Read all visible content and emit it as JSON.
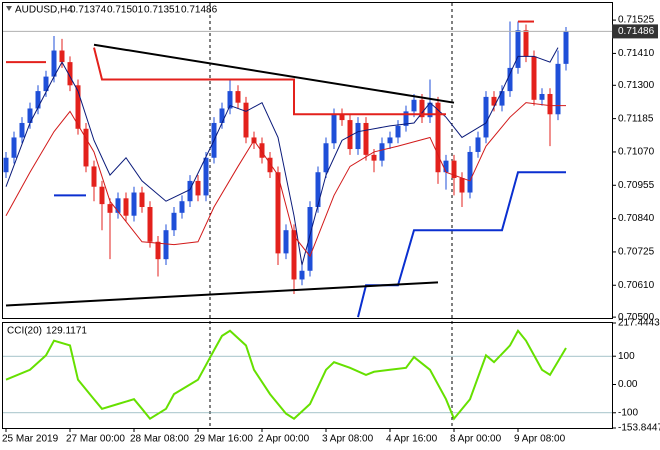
{
  "chart_data": [
    {
      "type": "candlestick",
      "title": "AUDUSD,H4",
      "categories": [
        "25 Mar 2019",
        null,
        null,
        null,
        null,
        null,
        null,
        null,
        "27 Mar 00:00",
        null,
        null,
        null,
        null,
        null,
        null,
        null,
        "28 Mar 08:00",
        null,
        null,
        null,
        null,
        null,
        null,
        null,
        "29 Mar 16:00",
        null,
        null,
        null,
        null,
        null,
        null,
        null,
        "2 Apr 00:00",
        null,
        null,
        null,
        null,
        null,
        null,
        null,
        "3 Apr 08:00",
        null,
        null,
        null,
        null,
        null,
        null,
        null,
        "4 Apr 16:00",
        null,
        null,
        null,
        null,
        null,
        null,
        null,
        "8 Apr 00:00",
        null,
        null,
        null,
        null,
        null,
        null,
        null,
        "9 Apr 08:00",
        null,
        null,
        null,
        null,
        null,
        null
      ],
      "open": [
        0.71,
        0.7105,
        0.7112,
        0.7117,
        0.7122,
        0.7128,
        0.7133,
        0.7142,
        0.7138,
        0.713,
        0.7115,
        0.7102,
        0.7095,
        0.7089,
        0.7086,
        0.7091,
        0.7085,
        0.7093,
        0.7088,
        0.7076,
        0.707,
        0.708,
        0.7086,
        0.709,
        0.7097,
        0.7092,
        0.7105,
        0.7117,
        0.7122,
        0.7128,
        0.7124,
        0.7112,
        0.711,
        0.7105,
        0.71,
        0.7072,
        0.708,
        0.7063,
        0.7066,
        0.7088,
        0.71,
        0.711,
        0.712,
        0.7118,
        0.7108,
        0.7117,
        0.7106,
        0.7104,
        0.711,
        0.7112,
        0.7116,
        0.7121,
        0.7125,
        0.7119,
        0.7124,
        0.71,
        0.7104,
        0.7098,
        0.7093,
        0.7107,
        0.7112,
        0.7126,
        0.7123,
        0.7128,
        0.7136,
        0.7149,
        0.714,
        0.7125,
        0.7127,
        0.712,
        0.71374
      ],
      "high": [
        0.7107,
        0.7114,
        0.7119,
        0.7124,
        0.713,
        0.7135,
        0.7147,
        0.7146,
        0.714,
        0.7132,
        0.7117,
        0.7104,
        0.7097,
        0.7091,
        0.7093,
        0.7093,
        0.7095,
        0.7095,
        0.709,
        0.7078,
        0.7082,
        0.7088,
        0.7092,
        0.7099,
        0.7099,
        0.7107,
        0.7119,
        0.7124,
        0.7132,
        0.713,
        0.7126,
        0.7114,
        0.7112,
        0.7107,
        0.7102,
        0.7082,
        0.7082,
        0.7068,
        0.709,
        0.7102,
        0.7112,
        0.7122,
        0.7122,
        0.712,
        0.7119,
        0.7119,
        0.7108,
        0.7112,
        0.7114,
        0.7118,
        0.7123,
        0.7127,
        0.7127,
        0.7132,
        0.7126,
        0.7106,
        0.7106,
        0.71,
        0.7109,
        0.7114,
        0.7128,
        0.7128,
        0.713,
        0.7152,
        0.7152,
        0.7151,
        0.7142,
        0.7129,
        0.7129,
        0.7142,
        0.71501
      ],
      "low": [
        0.7098,
        0.7103,
        0.711,
        0.7115,
        0.712,
        0.7126,
        0.7131,
        0.7136,
        0.7128,
        0.7113,
        0.71,
        0.709,
        0.708,
        0.707,
        0.7084,
        0.7083,
        0.7083,
        0.7086,
        0.7074,
        0.7064,
        0.7068,
        0.7078,
        0.7084,
        0.7088,
        0.709,
        0.709,
        0.7103,
        0.7115,
        0.712,
        0.7122,
        0.711,
        0.7108,
        0.7103,
        0.7098,
        0.7068,
        0.707,
        0.7058,
        0.7061,
        0.7064,
        0.7086,
        0.7098,
        0.7108,
        0.7116,
        0.7106,
        0.7106,
        0.7104,
        0.71,
        0.7102,
        0.7108,
        0.711,
        0.7114,
        0.7119,
        0.7117,
        0.7117,
        0.7096,
        0.7094,
        0.7092,
        0.7088,
        0.7091,
        0.7105,
        0.711,
        0.7121,
        0.7121,
        0.7126,
        0.7134,
        0.7138,
        0.7123,
        0.7123,
        0.7109,
        0.7118,
        0.71351
      ],
      "close": [
        0.7105,
        0.7112,
        0.7117,
        0.7122,
        0.7128,
        0.7133,
        0.7142,
        0.7138,
        0.713,
        0.7115,
        0.7102,
        0.7095,
        0.7089,
        0.7086,
        0.7091,
        0.7085,
        0.7093,
        0.7088,
        0.7076,
        0.707,
        0.708,
        0.7086,
        0.709,
        0.7097,
        0.7092,
        0.7105,
        0.7117,
        0.7122,
        0.7128,
        0.7124,
        0.7112,
        0.711,
        0.7105,
        0.71,
        0.7072,
        0.708,
        0.7063,
        0.7066,
        0.7088,
        0.71,
        0.711,
        0.712,
        0.7118,
        0.7108,
        0.7117,
        0.7106,
        0.7104,
        0.711,
        0.7112,
        0.7116,
        0.7121,
        0.7125,
        0.7119,
        0.7124,
        0.71,
        0.7104,
        0.7098,
        0.7093,
        0.7107,
        0.7112,
        0.7126,
        0.7123,
        0.7128,
        0.7136,
        0.7149,
        0.714,
        0.7125,
        0.7127,
        0.712,
        0.71374,
        0.71486
      ],
      "up_color": "#1f4fd8",
      "down_color": "#e3211c",
      "ylim": [
        0.70497,
        0.71584
      ],
      "yticks": [
        0.71525,
        {
          "value": 0.7141,
          "label": "0.71410"
        },
        {
          "value": 0.713,
          "label": "0.71300"
        },
        0.71185,
        {
          "value": 0.7107,
          "label": "0.71070"
        },
        0.70955,
        {
          "value": 0.7084,
          "label": "0.70840"
        },
        0.70725,
        {
          "value": 0.7061,
          "label": "0.70610"
        },
        {
          "value": 0.705,
          "label": "0.70500"
        }
      ],
      "overlays": [
        {
          "color": "#0a1a7a",
          "x": [
            0,
            3,
            6,
            7,
            9,
            11,
            13,
            15,
            17,
            20,
            23,
            26,
            28,
            30,
            32,
            34,
            36,
            37,
            40,
            42,
            44,
            48,
            51,
            53,
            55,
            57,
            60,
            62,
            64,
            66,
            68,
            69
          ],
          "values": [
            0.7095,
            0.7117,
            0.7133,
            0.7138,
            0.7128,
            0.7111,
            0.7099,
            0.7105,
            0.7097,
            0.709,
            0.7094,
            0.7111,
            0.7123,
            0.7121,
            0.7124,
            0.7112,
            0.7085,
            0.7068,
            0.7099,
            0.7111,
            0.7114,
            0.7116,
            0.7117,
            0.7124,
            0.7119,
            0.7112,
            0.7117,
            0.7128,
            0.714,
            0.714,
            0.7138,
            0.7143
          ]
        },
        {
          "color": "#d21a1a",
          "x": [
            0,
            3,
            6,
            8,
            11,
            13,
            17,
            21,
            24,
            26,
            29,
            31,
            34,
            36,
            38,
            41,
            43,
            46,
            49,
            53,
            55,
            58,
            60,
            63,
            65,
            68,
            70
          ],
          "values": [
            0.7085,
            0.71,
            0.7114,
            0.7121,
            0.7107,
            0.709,
            0.7076,
            0.7075,
            0.7076,
            0.7088,
            0.7102,
            0.7111,
            0.7099,
            0.7078,
            0.7071,
            0.7092,
            0.7102,
            0.7107,
            0.7109,
            0.7112,
            0.71,
            0.7097,
            0.7109,
            0.7119,
            0.7124,
            0.7123,
            0.7123
          ]
        },
        {
          "color": "#e3211c",
          "x": [
            0,
            5,
            null,
            11,
            12,
            36,
            36,
            55,
            null,
            64,
            66
          ],
          "values": [
            0.7138,
            0.7138,
            null,
            0.7143,
            0.7132,
            0.7132,
            0.712,
            0.712,
            null,
            0.7152,
            0.7152
          ]
        },
        {
          "color": "#0a2fd0",
          "x": [
            6,
            10,
            null,
            44,
            45,
            49,
            51,
            62,
            64,
            70
          ],
          "values": [
            0.7092,
            0.7092,
            null,
            0.705,
            0.7061,
            0.7061,
            0.708,
            0.708,
            0.71,
            0.71
          ]
        },
        {
          "color": "#000000",
          "x": [
            11,
            56
          ],
          "values": [
            0.7144,
            0.7124
          ]
        },
        {
          "color": "#000000",
          "x": [
            0,
            54
          ],
          "values": [
            0.7054,
            0.7062
          ]
        }
      ]
    },
    {
      "type": "line",
      "title": "CCI(20)",
      "color": "#66e000",
      "x": [
        0,
        3,
        5,
        6,
        8,
        9,
        11,
        12,
        14,
        16,
        17,
        18,
        20,
        21,
        24,
        26,
        27,
        28,
        30,
        31,
        33,
        35,
        36,
        38,
        40,
        41,
        43,
        45,
        46,
        48,
        50,
        51,
        53,
        55,
        56,
        58,
        60,
        61,
        63,
        64,
        65,
        67,
        68,
        70
      ],
      "values": [
        17,
        52,
        103,
        155,
        138,
        17,
        -52,
        -86,
        -69,
        -52,
        -86,
        -121,
        -86,
        -34,
        17,
        121,
        172,
        190,
        138,
        52,
        -34,
        -103,
        -121,
        -69,
        52,
        79,
        59,
        34,
        45,
        52,
        59,
        97,
        52,
        -52,
        -121,
        -52,
        103,
        79,
        138,
        190,
        155,
        52,
        34,
        129.1171
      ],
      "ylim": [
        -153.8447,
        217.4443
      ],
      "yticks": [
        217.4443,
        100,
        {
          "value": 0,
          "label": "0.00"
        },
        -100,
        -153.8447
      ]
    }
  ]
}
